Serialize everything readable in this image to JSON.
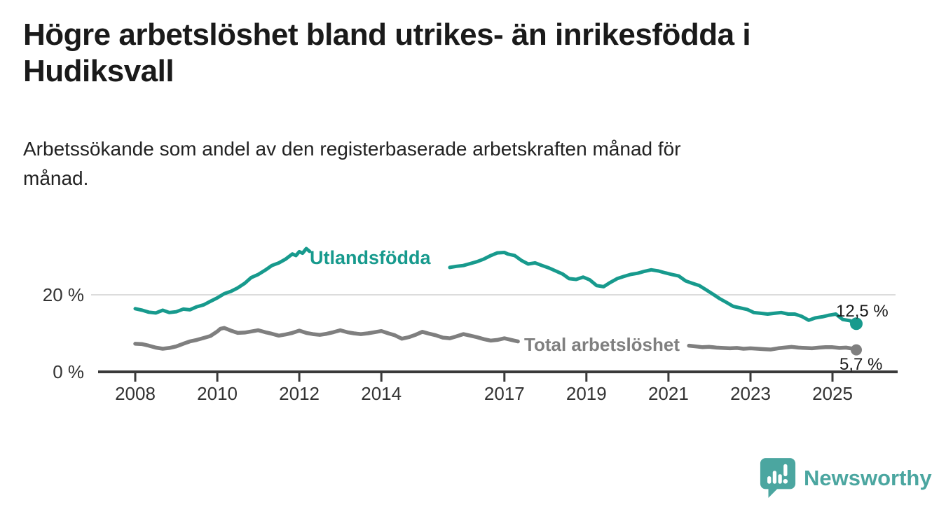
{
  "header": {
    "title": "Högre arbetslöshet bland utrikes- än inrikesfödda i Hudiksvall",
    "title_lines": [
      "Högre arbetslöshet bland utrikes- än inrikesfödda i",
      "Hudiksvall"
    ],
    "subtitle": "Arbetssökande som andel av den registerbaserade arbetskraften månad för månad.",
    "subtitle_lines": [
      "Arbetssökande som andel av den registerbaserade arbetskraften månad för",
      "månad."
    ]
  },
  "colors": {
    "foreign_line": "#179a8d",
    "total_line": "#7f7f7f",
    "axis": "#3a3a3a",
    "gridline": "#dcdcdc",
    "text": "#1a1a1a",
    "logo": "#4ba6a0"
  },
  "chart_data": {
    "type": "line",
    "title": "Högre arbetslöshet bland utrikes- än inrikesfödda i Hudiksvall",
    "subtitle": "Arbetssökande som andel av den registerbaserade arbetskraften månad för månad.",
    "grid": "single horizontal gridline at 20 %",
    "y_axis": {
      "unit": "%",
      "range": [
        0,
        34
      ],
      "ticks": [
        {
          "label": "20 %",
          "value": 20
        },
        {
          "label": "0 %",
          "value": 0
        }
      ]
    },
    "x_axis": {
      "range": [
        2008,
        2025.6
      ],
      "ticks": [
        {
          "label": "2008",
          "year": 2008
        },
        {
          "label": "2010",
          "year": 2010
        },
        {
          "label": "2012",
          "year": 2012
        },
        {
          "label": "2014",
          "year": 2014
        },
        {
          "label": "2017",
          "year": 2017
        },
        {
          "label": "2019",
          "year": 2019
        },
        {
          "label": "2021",
          "year": 2021
        },
        {
          "label": "2023",
          "year": 2023
        },
        {
          "label": "2025",
          "year": 2025
        }
      ]
    },
    "series": [
      {
        "name": "Utlandsfödda",
        "color": "#179a8d",
        "end_label": "12,5 %",
        "end_value": 12.5,
        "label_inline_gap": [
          2012.3,
          2015.6
        ],
        "x": [
          2008.0,
          2008.17,
          2008.33,
          2008.5,
          2008.67,
          2008.83,
          2009.0,
          2009.17,
          2009.33,
          2009.5,
          2009.67,
          2009.83,
          2010.0,
          2010.17,
          2010.33,
          2010.5,
          2010.67,
          2010.83,
          2011.0,
          2011.17,
          2011.33,
          2011.5,
          2011.67,
          2011.83,
          2011.92,
          2012.0,
          2012.08,
          2012.17,
          2012.25,
          2012.5,
          2012.75,
          2013.0,
          2013.25,
          2013.5,
          2013.75,
          2014.0,
          2014.25,
          2014.5,
          2014.75,
          2015.0,
          2015.25,
          2015.5,
          2015.67,
          2015.83,
          2016.0,
          2016.17,
          2016.33,
          2016.5,
          2016.67,
          2016.83,
          2017.0,
          2017.08,
          2017.25,
          2017.42,
          2017.58,
          2017.75,
          2017.92,
          2018.08,
          2018.25,
          2018.42,
          2018.58,
          2018.75,
          2018.92,
          2019.08,
          2019.25,
          2019.42,
          2019.58,
          2019.75,
          2019.92,
          2020.08,
          2020.25,
          2020.42,
          2020.58,
          2020.75,
          2020.92,
          2021.08,
          2021.25,
          2021.42,
          2021.58,
          2021.75,
          2021.92,
          2022.08,
          2022.25,
          2022.42,
          2022.58,
          2022.75,
          2022.92,
          2023.08,
          2023.25,
          2023.42,
          2023.58,
          2023.75,
          2023.92,
          2024.08,
          2024.25,
          2024.42,
          2024.58,
          2024.75,
          2024.92,
          2025.08,
          2025.25,
          2025.42,
          2025.58
        ],
        "values": [
          16.4,
          16.0,
          15.5,
          15.3,
          16.0,
          15.4,
          15.6,
          16.3,
          16.1,
          16.9,
          17.4,
          18.3,
          19.2,
          20.3,
          20.9,
          21.8,
          23.0,
          24.5,
          25.3,
          26.4,
          27.6,
          28.3,
          29.3,
          30.6,
          30.2,
          31.2,
          30.8,
          32.0,
          31.3,
          30.4,
          29.9,
          29.6,
          29.9,
          29.3,
          28.9,
          28.8,
          28.4,
          28.2,
          27.9,
          28.1,
          27.8,
          27.8,
          27.1,
          27.4,
          27.6,
          28.1,
          28.6,
          29.3,
          30.2,
          30.9,
          31.0,
          30.6,
          30.2,
          28.9,
          28.0,
          28.3,
          27.6,
          27.0,
          26.2,
          25.4,
          24.2,
          24.0,
          24.6,
          23.9,
          22.4,
          22.1,
          23.2,
          24.2,
          24.8,
          25.3,
          25.6,
          26.1,
          26.5,
          26.2,
          25.7,
          25.3,
          24.9,
          23.6,
          23.0,
          22.4,
          21.3,
          20.2,
          19.0,
          18.0,
          17.0,
          16.6,
          16.2,
          15.4,
          15.2,
          15.0,
          15.2,
          15.4,
          15.0,
          15.0,
          14.4,
          13.4,
          14.0,
          14.3,
          14.7,
          15.0,
          13.6,
          13.3,
          12.5
        ]
      },
      {
        "name": "Total arbetslöshet",
        "color": "#7f7f7f",
        "end_label": "5,7 %",
        "end_value": 5.7,
        "label_inline_gap": [
          2017.45,
          2021.45
        ],
        "x": [
          2008.0,
          2008.17,
          2008.33,
          2008.5,
          2008.67,
          2008.83,
          2009.0,
          2009.17,
          2009.33,
          2009.5,
          2009.67,
          2009.83,
          2010.0,
          2010.08,
          2010.17,
          2010.33,
          2010.5,
          2010.67,
          2010.83,
          2011.0,
          2011.17,
          2011.33,
          2011.5,
          2011.67,
          2011.83,
          2012.0,
          2012.17,
          2012.33,
          2012.5,
          2012.67,
          2012.83,
          2013.0,
          2013.17,
          2013.33,
          2013.5,
          2013.67,
          2013.83,
          2014.0,
          2014.17,
          2014.33,
          2014.5,
          2014.67,
          2014.83,
          2015.0,
          2015.17,
          2015.33,
          2015.5,
          2015.67,
          2015.83,
          2016.0,
          2016.17,
          2016.33,
          2016.5,
          2016.67,
          2016.83,
          2017.0,
          2017.17,
          2017.33,
          2017.5,
          2017.67,
          2017.83,
          2018.0,
          2018.17,
          2018.33,
          2018.5,
          2018.67,
          2018.83,
          2019.0,
          2019.17,
          2019.33,
          2019.5,
          2019.67,
          2019.83,
          2020.0,
          2020.17,
          2020.33,
          2020.5,
          2020.67,
          2020.83,
          2021.0,
          2021.17,
          2021.33,
          2021.5,
          2021.67,
          2021.83,
          2022.0,
          2022.17,
          2022.33,
          2022.5,
          2022.67,
          2022.83,
          2023.0,
          2023.17,
          2023.33,
          2023.5,
          2023.67,
          2023.83,
          2024.0,
          2024.17,
          2024.33,
          2024.5,
          2024.67,
          2024.83,
          2025.0,
          2025.17,
          2025.33,
          2025.5,
          2025.58
        ],
        "values": [
          7.3,
          7.2,
          6.8,
          6.3,
          6.0,
          6.2,
          6.6,
          7.3,
          7.9,
          8.3,
          8.8,
          9.3,
          10.5,
          11.2,
          11.4,
          10.7,
          10.1,
          10.2,
          10.5,
          10.8,
          10.3,
          9.9,
          9.4,
          9.7,
          10.1,
          10.7,
          10.1,
          9.8,
          9.6,
          9.9,
          10.3,
          10.8,
          10.3,
          10.0,
          9.8,
          10.0,
          10.3,
          10.6,
          10.0,
          9.5,
          8.6,
          9.0,
          9.6,
          10.4,
          9.9,
          9.5,
          8.9,
          8.7,
          9.2,
          9.8,
          9.4,
          9.0,
          8.5,
          8.1,
          8.3,
          8.7,
          8.3,
          7.9,
          7.6,
          7.7,
          7.9,
          8.2,
          7.8,
          7.5,
          7.2,
          7.3,
          7.6,
          7.9,
          7.5,
          7.2,
          7.1,
          7.3,
          7.5,
          7.7,
          8.2,
          8.6,
          8.3,
          7.8,
          7.4,
          7.2,
          7.0,
          6.9,
          6.8,
          6.6,
          6.4,
          6.5,
          6.3,
          6.2,
          6.1,
          6.2,
          6.0,
          6.1,
          6.0,
          5.9,
          5.8,
          6.1,
          6.3,
          6.5,
          6.3,
          6.2,
          6.1,
          6.3,
          6.4,
          6.4,
          6.2,
          6.3,
          6.0,
          5.7
        ]
      }
    ],
    "legend_position": "inline labels on lines, end values at right edge"
  },
  "footer": {
    "brand": "Newsworthy"
  }
}
